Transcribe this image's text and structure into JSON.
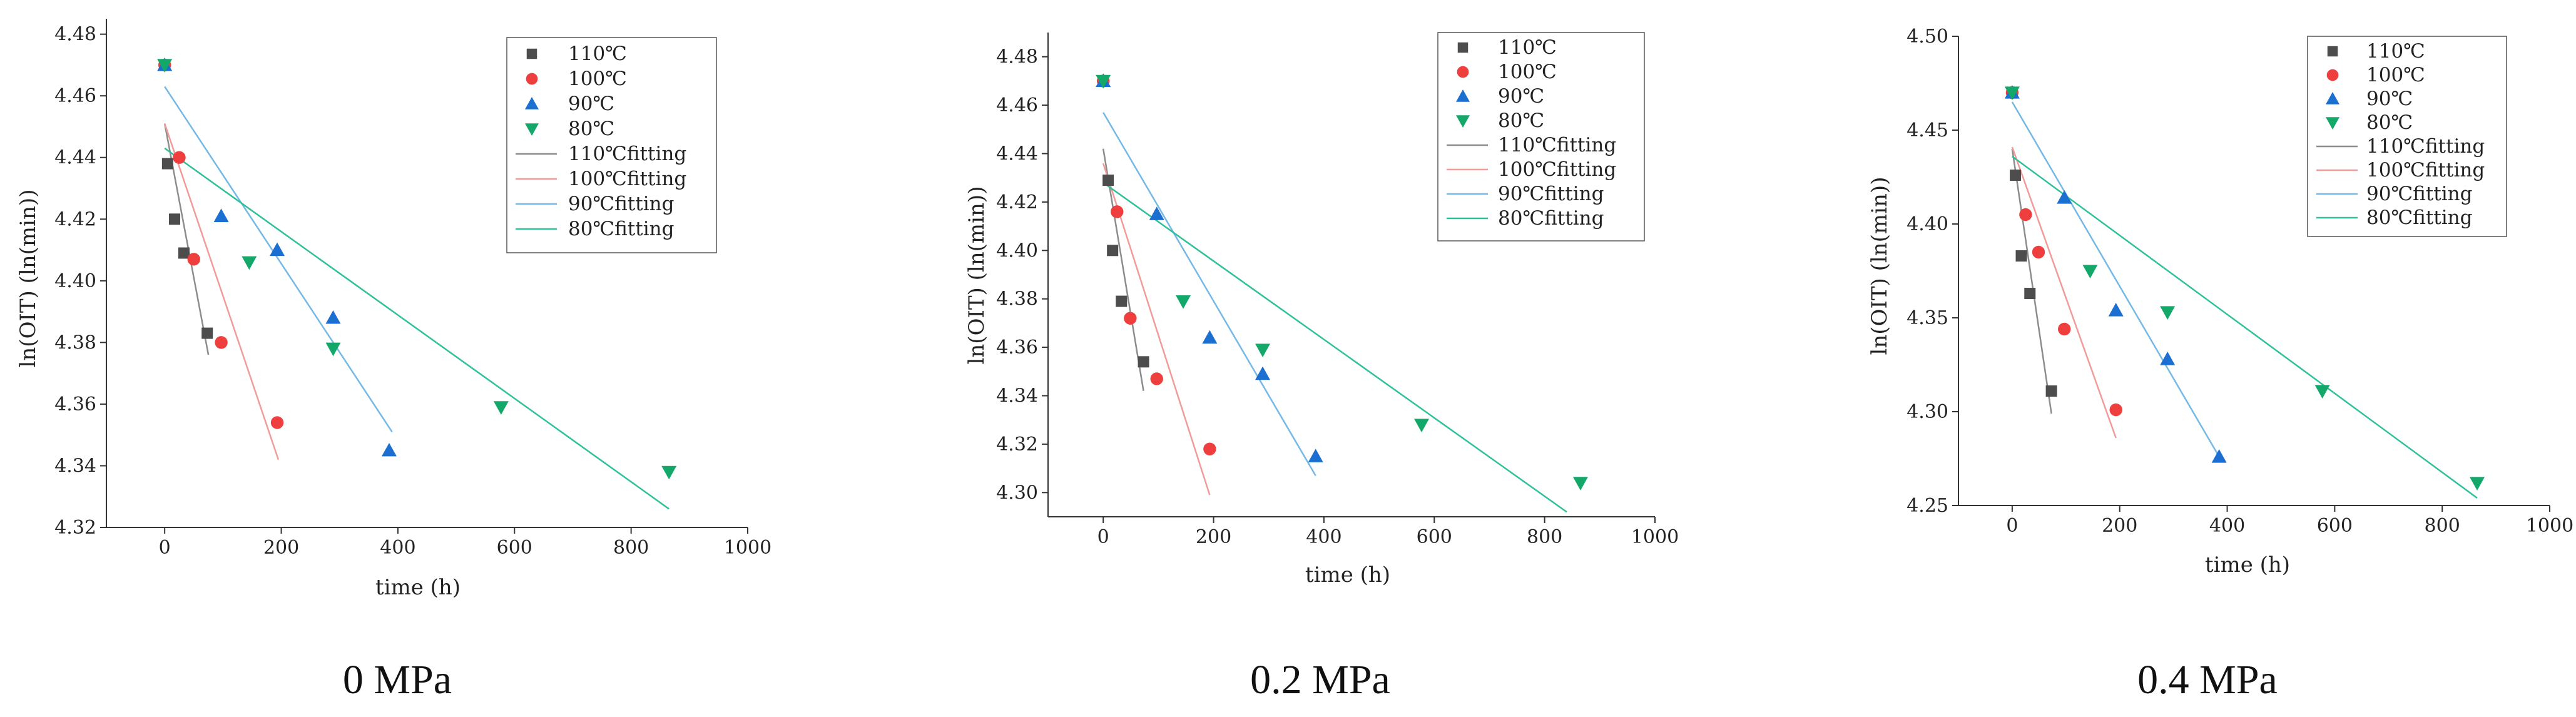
{
  "figure": {
    "colors": {
      "110": "#4d4d4d",
      "100": "#ef3e3e",
      "90": "#1a6fd0",
      "80": "#13a869",
      "fit110": "#8c8c8c",
      "fit100": "#f09a9a",
      "fit90": "#73b8e6",
      "fit80": "#2fc09a"
    }
  },
  "chart_data": [
    {
      "type": "scatter",
      "title": "",
      "caption": "0 MPa",
      "xlabel": "time (h)",
      "ylabel": "ln(OIT) (ln(min))",
      "xlim": [
        -100,
        1000
      ],
      "ylim": [
        4.32,
        4.485
      ],
      "xticks": [
        0,
        200,
        400,
        600,
        800,
        1000
      ],
      "yticks": [
        4.32,
        4.34,
        4.36,
        4.38,
        4.4,
        4.42,
        4.44,
        4.46,
        4.48
      ],
      "ytick_decimals": 2,
      "legend_position": "top-right",
      "series": [
        {
          "name": "110℃",
          "marker": "square",
          "color_key": "110",
          "x": [
            0,
            5,
            17,
            33,
            73
          ],
          "y": [
            4.47,
            4.438,
            4.42,
            4.409,
            4.383
          ]
        },
        {
          "name": "100℃",
          "marker": "circle",
          "color_key": "100",
          "x": [
            0,
            25,
            50,
            97,
            193
          ],
          "y": [
            4.47,
            4.44,
            4.407,
            4.38,
            4.354
          ]
        },
        {
          "name": "90℃",
          "marker": "triangle-up",
          "color_key": "90",
          "x": [
            0,
            97,
            193,
            289,
            385
          ],
          "y": [
            4.47,
            4.421,
            4.41,
            4.388,
            4.345
          ]
        },
        {
          "name": "80℃",
          "marker": "triangle-down",
          "color_key": "80",
          "x": [
            0,
            145,
            289,
            577,
            865
          ],
          "y": [
            4.47,
            4.406,
            4.378,
            4.359,
            4.338
          ]
        }
      ],
      "fits": [
        {
          "name": "110℃fitting",
          "color_key": "fit110",
          "x": [
            0,
            75
          ],
          "y": [
            4.451,
            4.376
          ]
        },
        {
          "name": "100℃fitting",
          "color_key": "fit100",
          "x": [
            0,
            195
          ],
          "y": [
            4.451,
            4.342
          ]
        },
        {
          "name": "90℃fitting",
          "color_key": "fit90",
          "x": [
            0,
            390
          ],
          "y": [
            4.463,
            4.351
          ]
        },
        {
          "name": "80℃fitting",
          "color_key": "fit80",
          "x": [
            0,
            865
          ],
          "y": [
            4.443,
            4.326
          ]
        }
      ]
    },
    {
      "type": "scatter",
      "title": "",
      "caption": "0.2 MPa",
      "xlabel": "time (h)",
      "ylabel": "ln(OIT) (ln(min))",
      "xlim": [
        -100,
        1000
      ],
      "ylim": [
        4.29,
        4.49
      ],
      "xticks": [
        0,
        200,
        400,
        600,
        800,
        1000
      ],
      "yticks": [
        4.3,
        4.32,
        4.34,
        4.36,
        4.38,
        4.4,
        4.42,
        4.44,
        4.46,
        4.48
      ],
      "ytick_decimals": 2,
      "legend_position": "top-right",
      "series": [
        {
          "name": "110℃",
          "marker": "square",
          "color_key": "110",
          "x": [
            0,
            9,
            17,
            33,
            73
          ],
          "y": [
            4.47,
            4.429,
            4.4,
            4.379,
            4.354
          ]
        },
        {
          "name": "100℃",
          "marker": "circle",
          "color_key": "100",
          "x": [
            0,
            25,
            49,
            97,
            193
          ],
          "y": [
            4.47,
            4.416,
            4.372,
            4.347,
            4.318
          ]
        },
        {
          "name": "90℃",
          "marker": "triangle-up",
          "color_key": "90",
          "x": [
            0,
            97,
            193,
            289,
            385
          ],
          "y": [
            4.47,
            4.415,
            4.364,
            4.349,
            4.315
          ]
        },
        {
          "name": "80℃",
          "marker": "triangle-down",
          "color_key": "80",
          "x": [
            0,
            145,
            289,
            577,
            865
          ],
          "y": [
            4.47,
            4.379,
            4.359,
            4.328,
            4.304
          ]
        }
      ],
      "fits": [
        {
          "name": "110℃fitting",
          "color_key": "fit110",
          "x": [
            0,
            73
          ],
          "y": [
            4.442,
            4.342
          ]
        },
        {
          "name": "100℃fitting",
          "color_key": "fit100",
          "x": [
            0,
            193
          ],
          "y": [
            4.436,
            4.299
          ]
        },
        {
          "name": "90℃fitting",
          "color_key": "fit90",
          "x": [
            0,
            385
          ],
          "y": [
            4.457,
            4.307
          ]
        },
        {
          "name": "80℃fitting",
          "color_key": "fit80",
          "x": [
            0,
            840
          ],
          "y": [
            4.428,
            4.292
          ]
        }
      ]
    },
    {
      "type": "scatter",
      "title": "",
      "caption": "0.4 MPa",
      "xlabel": "time (h)",
      "ylabel": "ln(OIT) (ln(min))",
      "xlim": [
        -100,
        1000
      ],
      "ylim": [
        4.25,
        4.5
      ],
      "xticks": [
        0,
        200,
        400,
        600,
        800,
        1000
      ],
      "yticks": [
        4.25,
        4.3,
        4.35,
        4.4,
        4.45,
        4.5
      ],
      "ytick_decimals": 2,
      "legend_position": "top-right",
      "series": [
        {
          "name": "110℃",
          "marker": "square",
          "color_key": "110",
          "x": [
            0,
            6,
            17,
            33,
            73
          ],
          "y": [
            4.47,
            4.426,
            4.383,
            4.363,
            4.311
          ]
        },
        {
          "name": "100℃",
          "marker": "circle",
          "color_key": "100",
          "x": [
            0,
            25,
            49,
            97,
            193
          ],
          "y": [
            4.47,
            4.405,
            4.385,
            4.344,
            4.301
          ]
        },
        {
          "name": "90℃",
          "marker": "triangle-up",
          "color_key": "90",
          "x": [
            0,
            97,
            193,
            289,
            385
          ],
          "y": [
            4.47,
            4.414,
            4.354,
            4.328,
            4.276
          ]
        },
        {
          "name": "80℃",
          "marker": "triangle-down",
          "color_key": "80",
          "x": [
            0,
            145,
            289,
            577,
            865
          ],
          "y": [
            4.47,
            4.375,
            4.353,
            4.311,
            4.262
          ]
        }
      ],
      "fits": [
        {
          "name": "110℃fitting",
          "color_key": "fit110",
          "x": [
            0,
            73
          ],
          "y": [
            4.44,
            4.299
          ]
        },
        {
          "name": "100℃fitting",
          "color_key": "fit100",
          "x": [
            0,
            193
          ],
          "y": [
            4.441,
            4.286
          ]
        },
        {
          "name": "90℃fitting",
          "color_key": "fit90",
          "x": [
            0,
            385
          ],
          "y": [
            4.465,
            4.276
          ]
        },
        {
          "name": "80℃fitting",
          "color_key": "fit80",
          "x": [
            0,
            865
          ],
          "y": [
            4.436,
            4.254
          ]
        }
      ]
    }
  ]
}
